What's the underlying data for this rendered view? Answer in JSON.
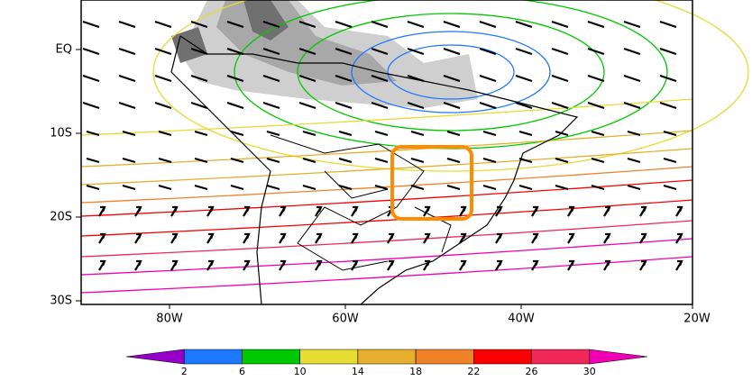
{
  "map": {
    "lat_labels": [
      "EQ",
      "10S",
      "20S",
      "30S"
    ],
    "lon_labels": [
      "80W",
      "60W",
      "40W",
      "20W"
    ]
  },
  "colorbar": {
    "labels": [
      "2",
      "6",
      "10",
      "14",
      "18",
      "22",
      "26",
      "30"
    ],
    "colors": [
      "#9600c8",
      "#1e78ff",
      "#00c800",
      "#e6dc32",
      "#e6af2d",
      "#f08228",
      "#fa0000",
      "#f0285a",
      "#f000b4"
    ]
  }
}
